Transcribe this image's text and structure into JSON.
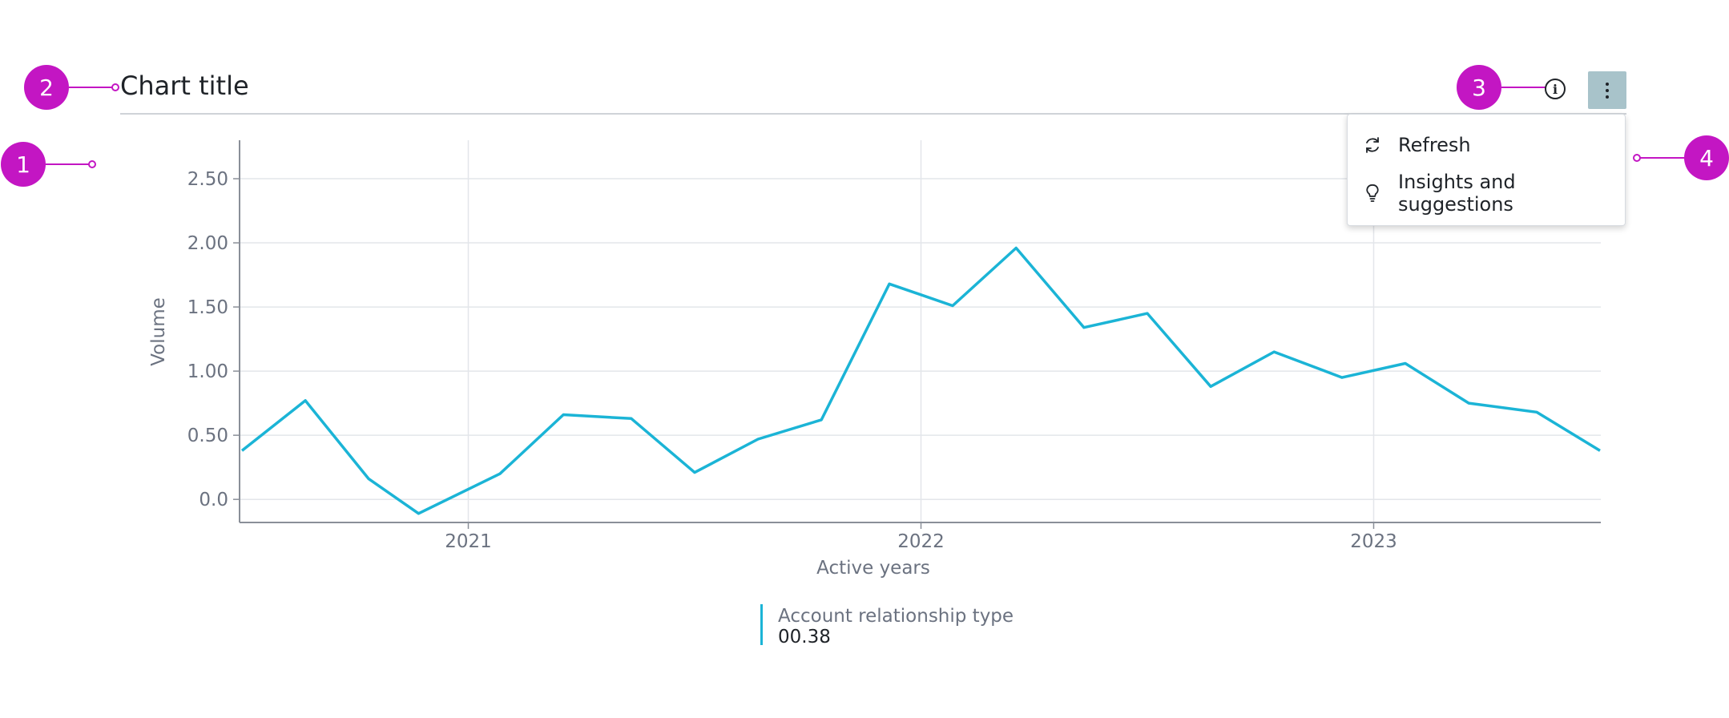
{
  "header": {
    "title": "Chart title",
    "info_icon": "info-circle-icon",
    "menu_icon": "kebab-menu-icon"
  },
  "callouts": [
    "1",
    "2",
    "3",
    "4"
  ],
  "menu": {
    "items": [
      {
        "label": "Refresh",
        "icon": "refresh-icon"
      },
      {
        "label": "Insights and suggestions",
        "icon": "lightbulb-icon"
      }
    ]
  },
  "colors": {
    "series": "#1bb4d6",
    "callout": "#c316c3",
    "menu_button": "#a8c3ca"
  },
  "chart_data": {
    "type": "line",
    "xlabel": "Active years",
    "ylabel": "Volume",
    "x_ticks": [
      "2021",
      "2022",
      "2023"
    ],
    "y_ticks": [
      "0.0",
      "0.50",
      "1.00",
      "1.50",
      "2.00",
      "2.50"
    ],
    "ylim": [
      -0.18,
      2.8
    ],
    "xlim": [
      2020.5,
      2023.5
    ],
    "grid": true,
    "legend_placement": "bottom-center",
    "series": [
      {
        "name": "Account relationship type",
        "legend_value": "00.38",
        "x": [
          2020.5,
          2020.64,
          2020.78,
          2020.89,
          2021.07,
          2021.21,
          2021.36,
          2021.5,
          2021.64,
          2021.78,
          2021.93,
          2022.07,
          2022.21,
          2022.36,
          2022.5,
          2022.64,
          2022.78,
          2022.93,
          2023.07,
          2023.21,
          2023.36,
          2023.5
        ],
        "y": [
          0.38,
          0.77,
          0.16,
          -0.11,
          0.2,
          0.66,
          0.63,
          0.21,
          0.47,
          0.62,
          1.68,
          1.51,
          1.96,
          1.34,
          1.45,
          0.88,
          1.15,
          0.95,
          1.06,
          0.75,
          0.68,
          0.38
        ]
      }
    ]
  }
}
